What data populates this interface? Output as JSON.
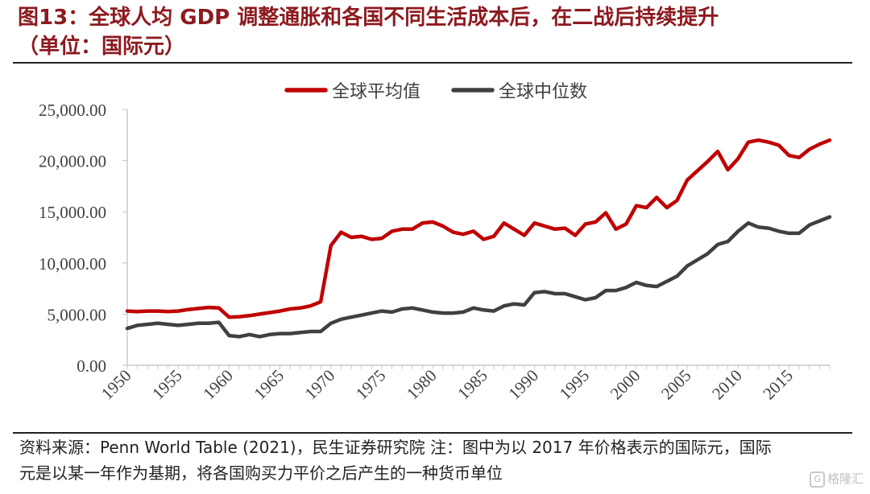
{
  "title_line1": "图13：全球人均 GDP 调整通胀和各国不同生活成本后，在二战后持续提升",
  "title_line2": "（单位：国际元）",
  "footer_line1": "资料来源：Penn World Table (2021)，民生证券研究院 注：图中为以 2017 年价格表示的国际元，国际",
  "footer_line2": "元是以某一年作为基期，将各国购买力平价之后产生的一种货币单位",
  "watermark": "格隆汇",
  "watermark_icon": "G",
  "colors": {
    "title": "#8c1a1f",
    "mean": "#c00000",
    "median": "#404040"
  },
  "chart_data": {
    "type": "line",
    "title": "",
    "xlabel": "",
    "ylabel": "",
    "xlim": [
      1950,
      2019
    ],
    "ylim": [
      0,
      25000
    ],
    "y_ticks": [
      0,
      5000,
      10000,
      15000,
      20000,
      25000
    ],
    "y_tick_labels": [
      "0.00",
      "5,000.00",
      "10,000.00",
      "15,000.00",
      "20,000.00",
      "25,000.00"
    ],
    "x_ticks": [
      1950,
      1955,
      1960,
      1965,
      1970,
      1975,
      1980,
      1985,
      1990,
      1995,
      2000,
      2005,
      2010,
      2015
    ],
    "x_tick_labels": [
      "1950",
      "1955",
      "1960",
      "1965",
      "1970",
      "1975",
      "1980",
      "1985",
      "1990",
      "1995",
      "2000",
      "2005",
      "2010",
      "2015"
    ],
    "grid": false,
    "legend_position": "top",
    "x": [
      1950,
      1951,
      1952,
      1953,
      1954,
      1955,
      1956,
      1957,
      1958,
      1959,
      1960,
      1961,
      1962,
      1963,
      1964,
      1965,
      1966,
      1967,
      1968,
      1969,
      1970,
      1971,
      1972,
      1973,
      1974,
      1975,
      1976,
      1977,
      1978,
      1979,
      1980,
      1981,
      1982,
      1983,
      1984,
      1985,
      1986,
      1987,
      1988,
      1989,
      1990,
      1991,
      1992,
      1993,
      1994,
      1995,
      1996,
      1997,
      1998,
      1999,
      2000,
      2001,
      2002,
      2003,
      2004,
      2005,
      2006,
      2007,
      2008,
      2009,
      2010,
      2011,
      2012,
      2013,
      2014,
      2015,
      2016,
      2017,
      2018,
      2019
    ],
    "series": [
      {
        "name": "全球平均值",
        "color": "#c00000",
        "values": [
          5300,
          5250,
          5300,
          5300,
          5250,
          5300,
          5450,
          5550,
          5650,
          5600,
          4700,
          4750,
          4850,
          5000,
          5150,
          5300,
          5500,
          5600,
          5800,
          6200,
          11700,
          13000,
          12500,
          12600,
          12300,
          12400,
          13100,
          13300,
          13300,
          13900,
          14000,
          13600,
          13000,
          12800,
          13100,
          12300,
          12600,
          13900,
          13300,
          12700,
          13900,
          13600,
          13300,
          13400,
          12700,
          13800,
          14000,
          14900,
          13300,
          13800,
          15600,
          15400,
          16400,
          15400,
          16100,
          18100,
          19000,
          19900,
          20900,
          19100,
          20200,
          21800,
          22000,
          21800,
          21500,
          20500,
          20300,
          21100,
          21600,
          22000
        ]
      },
      {
        "name": "全球中位数",
        "color": "#404040",
        "values": [
          3600,
          3900,
          4000,
          4100,
          4000,
          3900,
          4000,
          4100,
          4100,
          4200,
          2900,
          2800,
          3000,
          2800,
          3000,
          3100,
          3100,
          3200,
          3300,
          3300,
          4100,
          4500,
          4700,
          4900,
          5100,
          5300,
          5200,
          5500,
          5600,
          5400,
          5200,
          5100,
          5100,
          5200,
          5600,
          5400,
          5300,
          5800,
          6000,
          5900,
          7100,
          7200,
          7000,
          7000,
          6700,
          6400,
          6600,
          7300,
          7300,
          7600,
          8100,
          7800,
          7700,
          8200,
          8700,
          9700,
          10300,
          10900,
          11800,
          12100,
          13100,
          13900,
          13500,
          13400,
          13100,
          12900,
          12900,
          13700,
          14100,
          14500
        ]
      }
    ]
  }
}
